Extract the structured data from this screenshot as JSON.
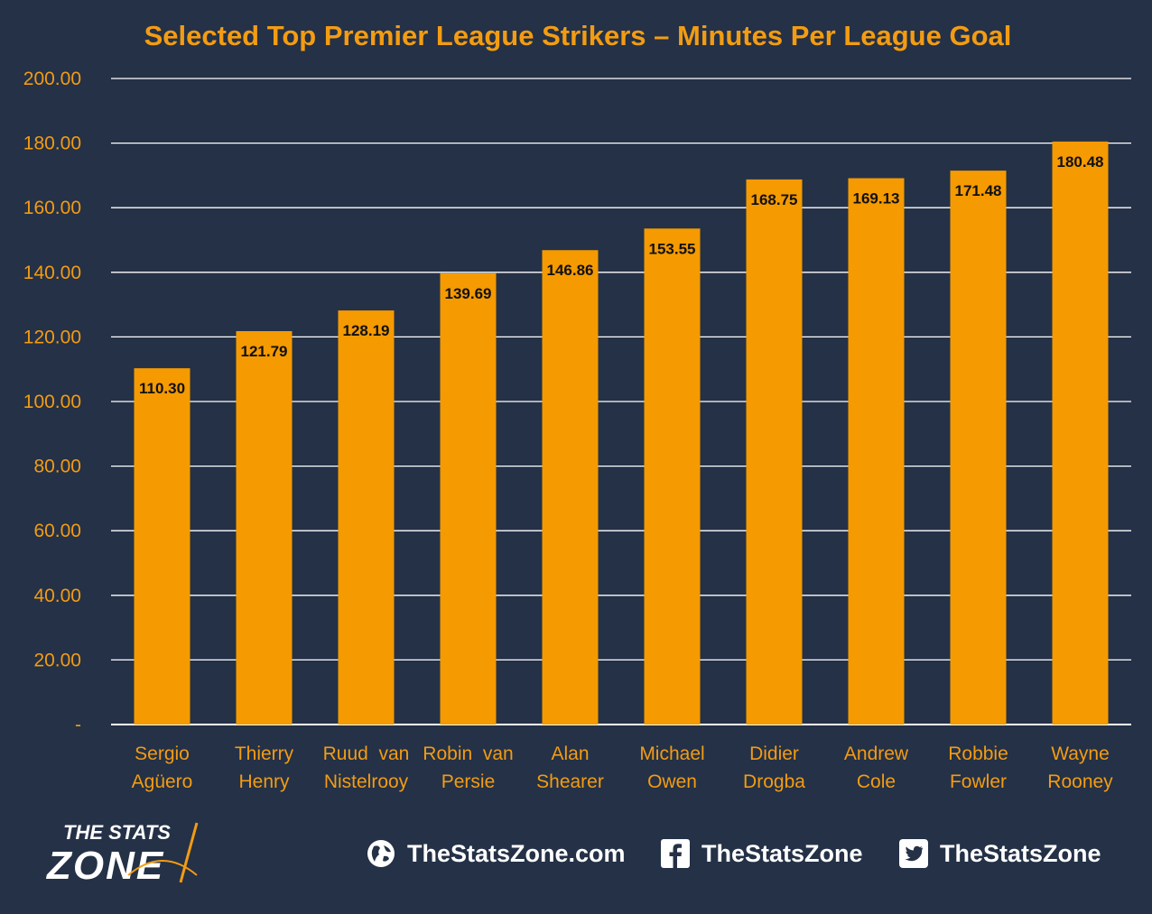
{
  "chart_data": {
    "type": "bar",
    "title": "Selected Top Premier League Strikers – Minutes Per League Goal",
    "categories": [
      [
        "Sergio",
        "Agüero"
      ],
      [
        "Thierry",
        "Henry"
      ],
      [
        "Ruud  van",
        "Nistelrooy"
      ],
      [
        "Robin  van",
        "Persie"
      ],
      [
        "Alan",
        "Shearer"
      ],
      [
        "Michael",
        "Owen"
      ],
      [
        "Didier",
        "Drogba"
      ],
      [
        "Andrew",
        "Cole"
      ],
      [
        "Robbie",
        "Fowler"
      ],
      [
        "Wayne",
        "Rooney"
      ]
    ],
    "values": [
      110.3,
      121.79,
      128.19,
      139.69,
      146.86,
      153.55,
      168.75,
      169.13,
      171.48,
      180.48
    ],
    "value_labels": [
      "110.30",
      "121.79",
      "128.19",
      "139.69",
      "146.86",
      "153.55",
      "168.75",
      "169.13",
      "171.48",
      "180.48"
    ],
    "ylim": [
      0,
      200
    ],
    "yticks": [
      0,
      20,
      40,
      60,
      80,
      100,
      120,
      140,
      160,
      180,
      200
    ],
    "ytick_labels": [
      "-",
      "20.00",
      "40.00",
      "60.00",
      "80.00",
      "100.00",
      "120.00",
      "140.00",
      "160.00",
      "180.00",
      "200.00"
    ],
    "grid": true,
    "bar_color": "#f59a00",
    "text_color": "#f39c12",
    "background": "#243147"
  },
  "footer": {
    "logo_line1": "THE STATS",
    "logo_line2": "ZONE",
    "website_label": "TheStatsZone.com",
    "website_icon": "globe-icon",
    "facebook_label": "TheStatsZone",
    "facebook_icon": "facebook-icon",
    "twitter_label": "TheStatsZone",
    "twitter_icon": "twitter-icon"
  }
}
